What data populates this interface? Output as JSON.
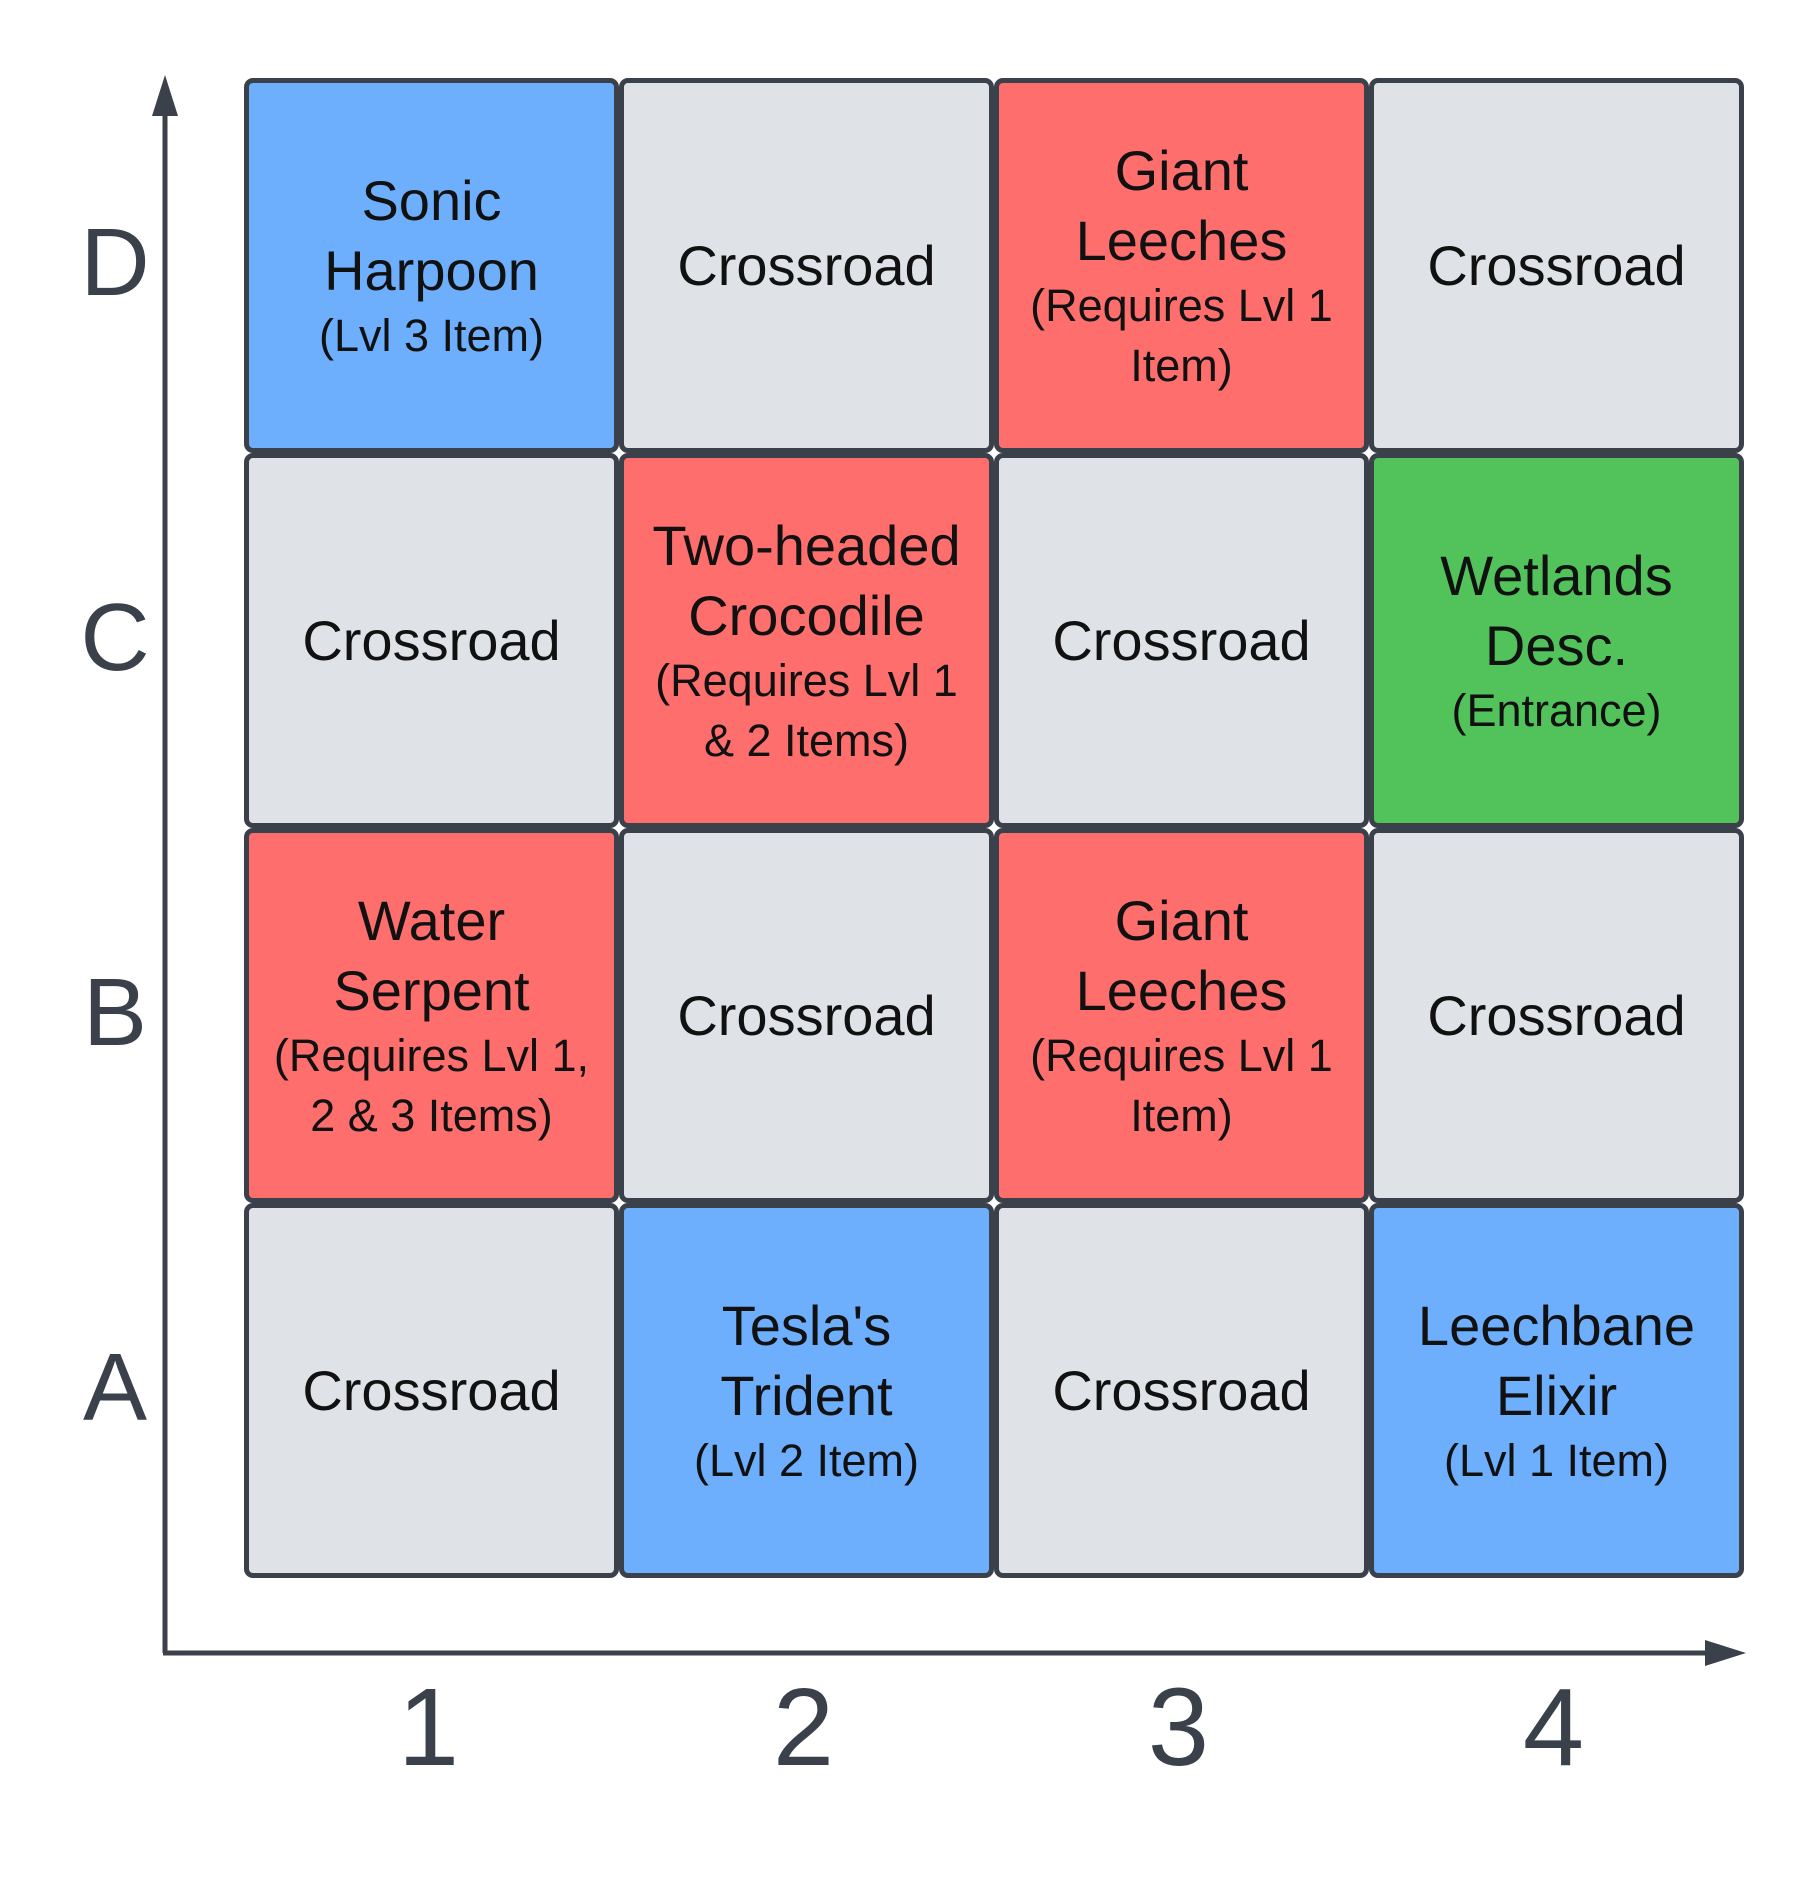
{
  "palette": {
    "crossroad": "#dfe3e8",
    "item": "#6daffd",
    "monster": "#fd6e6d",
    "entrance": "#52c25b",
    "border": "#3a414b"
  },
  "rows": [
    "A",
    "B",
    "C",
    "D"
  ],
  "cols": [
    "1",
    "2",
    "3",
    "4"
  ],
  "cells": [
    {
      "row": "D",
      "col": "1",
      "kind": "item",
      "title": "Sonic Harpoon",
      "subtitle": "(Lvl 3 Item)"
    },
    {
      "row": "D",
      "col": "2",
      "kind": "crossroad",
      "title": "Crossroad",
      "subtitle": ""
    },
    {
      "row": "D",
      "col": "3",
      "kind": "monster",
      "title": "Giant Leeches",
      "subtitle": "(Requires Lvl 1 Item)"
    },
    {
      "row": "D",
      "col": "4",
      "kind": "crossroad",
      "title": "Crossroad",
      "subtitle": ""
    },
    {
      "row": "C",
      "col": "1",
      "kind": "crossroad",
      "title": "Crossroad",
      "subtitle": ""
    },
    {
      "row": "C",
      "col": "2",
      "kind": "monster",
      "title": "Two-headed Crocodile",
      "subtitle": "(Requires Lvl 1 & 2 Items)"
    },
    {
      "row": "C",
      "col": "3",
      "kind": "crossroad",
      "title": "Crossroad",
      "subtitle": ""
    },
    {
      "row": "C",
      "col": "4",
      "kind": "entrance",
      "title": "Wetlands Desc.",
      "subtitle": "(Entrance)"
    },
    {
      "row": "B",
      "col": "1",
      "kind": "monster",
      "title": "Water Serpent",
      "subtitle": "(Requires Lvl 1, 2 & 3 Items)"
    },
    {
      "row": "B",
      "col": "2",
      "kind": "crossroad",
      "title": "Crossroad",
      "subtitle": ""
    },
    {
      "row": "B",
      "col": "3",
      "kind": "monster",
      "title": "Giant Leeches",
      "subtitle": "(Requires Lvl 1 Item)"
    },
    {
      "row": "B",
      "col": "4",
      "kind": "crossroad",
      "title": "Crossroad",
      "subtitle": ""
    },
    {
      "row": "A",
      "col": "1",
      "kind": "crossroad",
      "title": "Crossroad",
      "subtitle": ""
    },
    {
      "row": "A",
      "col": "2",
      "kind": "item",
      "title": "Tesla's Trident",
      "subtitle": "(Lvl 2 Item)"
    },
    {
      "row": "A",
      "col": "3",
      "kind": "crossroad",
      "title": "Crossroad",
      "subtitle": ""
    },
    {
      "row": "A",
      "col": "4",
      "kind": "item",
      "title": "Leechbane Elixir",
      "subtitle": "(Lvl 1 Item)"
    }
  ]
}
